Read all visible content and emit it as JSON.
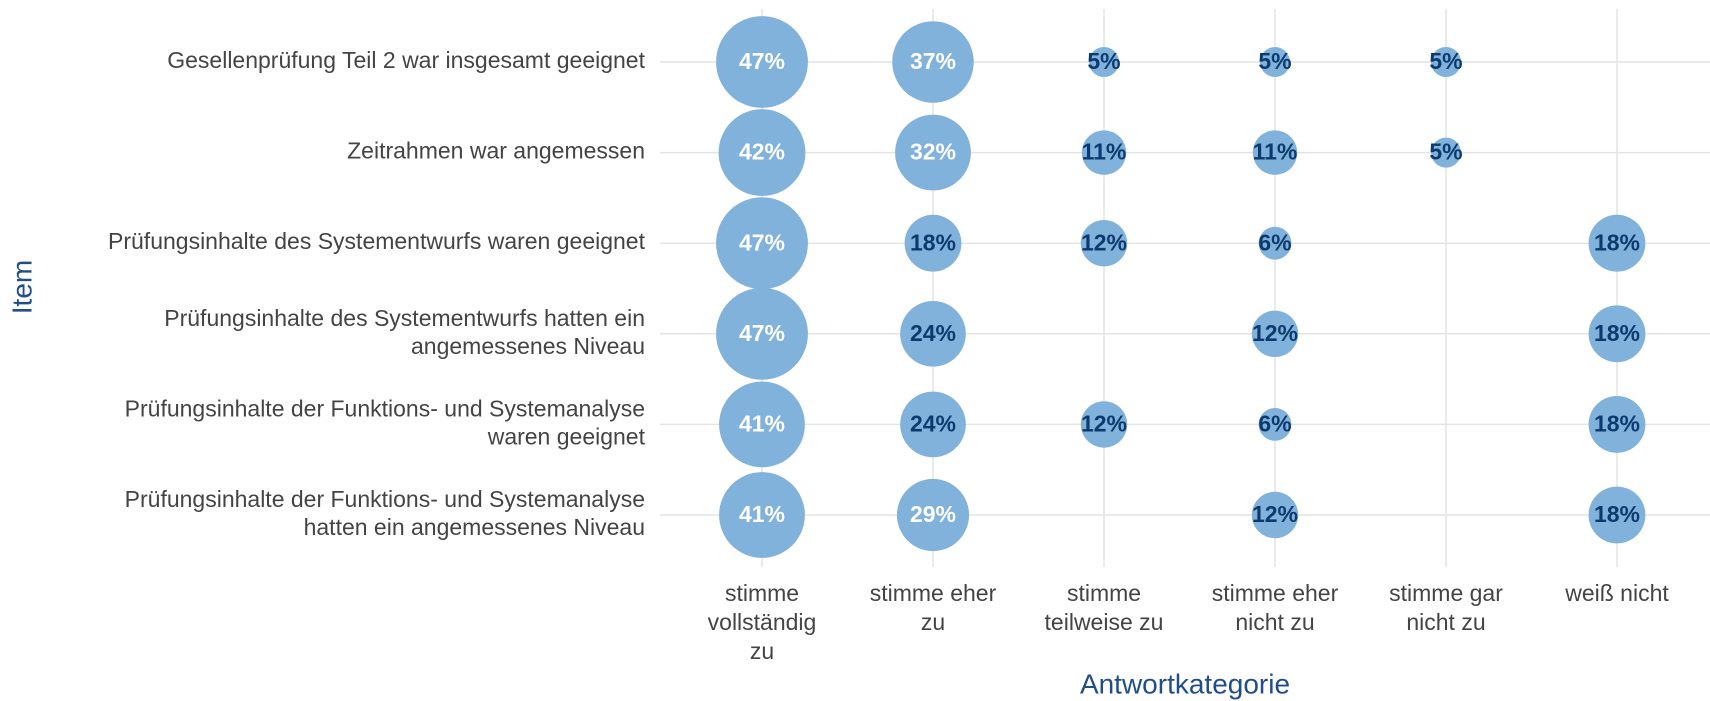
{
  "chart_data": {
    "type": "bubble",
    "x_label": "Antwortkategorie",
    "y_label": "Item",
    "categories": [
      "stimme\nvollständig\nzu",
      "stimme eher\nzu",
      "stimme\nteilweise zu",
      "stimme eher\nnicht zu",
      "stimme gar\nnicht zu",
      "weiß nicht"
    ],
    "items": [
      "Gesellenprüfung Teil 2 war insgesamt geeignet",
      "Zeitrahmen war angemessen",
      "Prüfungsinhalte des Systementwurfs waren geeignet",
      "Prüfungsinhalte des Systementwurfs hatten ein\nangemessenes Niveau",
      "Prüfungsinhalte der Funktions- und Systemanalyse\nwaren geeignet",
      "Prüfungsinhalte der Funktions- und Systemanalyse\nhatten ein angemessenes Niveau"
    ],
    "values": [
      [
        47,
        37,
        5,
        5,
        5,
        null
      ],
      [
        42,
        32,
        11,
        11,
        5,
        null
      ],
      [
        47,
        18,
        12,
        6,
        null,
        18
      ],
      [
        47,
        24,
        null,
        12,
        null,
        18
      ],
      [
        41,
        24,
        12,
        6,
        null,
        18
      ],
      [
        41,
        29,
        null,
        12,
        null,
        18
      ]
    ],
    "value_labels": [
      [
        "47%",
        "37%",
        "5%",
        "5%",
        "5%",
        null
      ],
      [
        "42%",
        "32%",
        "11%",
        "11%",
        "5%",
        null
      ],
      [
        "47%",
        "18%",
        "12%",
        "6%",
        null,
        "18%"
      ],
      [
        "47%",
        "24%",
        null,
        "12%",
        null,
        "18%"
      ],
      [
        "41%",
        "24%",
        "12%",
        "6%",
        null,
        "18%"
      ],
      [
        "41%",
        "29%",
        null,
        "12%",
        null,
        "18%"
      ]
    ],
    "color": "#80b2db",
    "grid": true
  }
}
